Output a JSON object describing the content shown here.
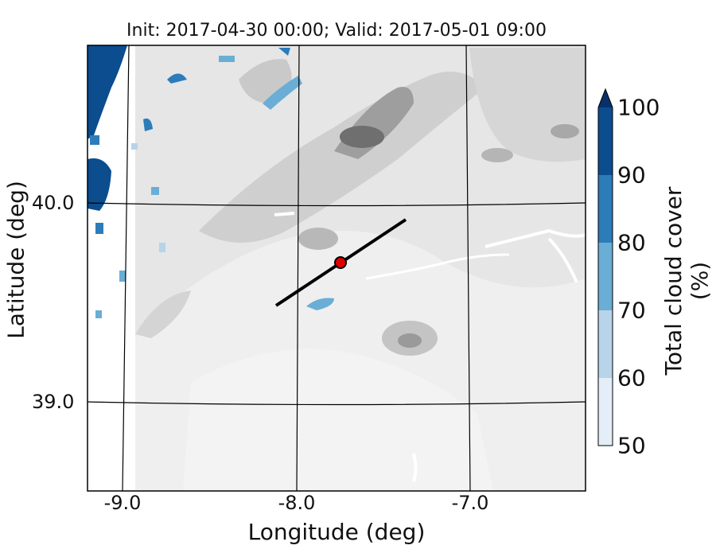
{
  "title": "Init: 2017-04-30 00:00; Valid: 2017-05-01 09:00",
  "xlabel": "Longitude (deg)",
  "ylabel": "Latitude (deg)",
  "x_ticks": [
    "-9.0",
    "-8.0",
    "-7.0"
  ],
  "y_ticks": [
    "40.0",
    "39.0"
  ],
  "colorbar": {
    "label": "Total cloud cover (%)",
    "ticks": [
      "50",
      "60",
      "70",
      "80",
      "90",
      "100"
    ],
    "levels": [
      50,
      60,
      70,
      80,
      90,
      100
    ],
    "colors": [
      "#e3eef9",
      "#b7d4ea",
      "#6aaed6",
      "#2c7cba",
      "#0b4d8f"
    ],
    "extend_color": "#08306b",
    "extend": "max"
  },
  "map": {
    "background_terrain": "greyscale topography",
    "transect": {
      "start": [
        -8.12,
        39.47
      ],
      "end": [
        -7.37,
        39.9
      ]
    },
    "marker": {
      "lon": -7.75,
      "lat": 39.69,
      "color": "#e00000"
    }
  }
}
